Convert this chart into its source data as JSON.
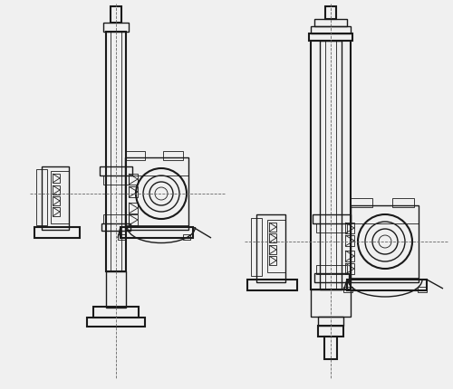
{
  "bg_color": "#f0f0f0",
  "line_color": "#1a1a1a",
  "dash_color": "#666666",
  "fig_width": 5.0,
  "fig_height": 4.31,
  "dpi": 100,
  "lw_thick": 1.5,
  "lw_med": 1.0,
  "lw_thin": 0.6,
  "lw_dash": 0.6
}
